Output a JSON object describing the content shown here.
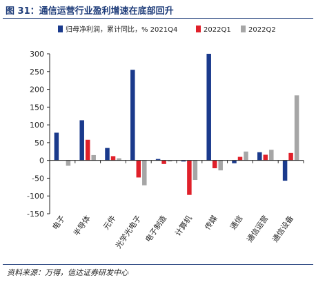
{
  "figure": {
    "title": "图 31：通信运营行业盈利增速在底部回升",
    "source": "资料来源：万得，信达证券研发中心"
  },
  "chart_data": {
    "type": "bar",
    "title": "图 31：通信运营行业盈利增速在底部回升",
    "xlabel": "",
    "ylabel": "",
    "ylim": [
      -150,
      300
    ],
    "yticks": [
      -150,
      -100,
      -50,
      0,
      50,
      100,
      150,
      200,
      250,
      300
    ],
    "grid": false,
    "legend_position": "top",
    "categories": [
      "电子",
      "半导体",
      "元件",
      "光学光电子",
      "电子制造",
      "计算机",
      "传媒",
      "通信",
      "通信运营",
      "通信设备"
    ],
    "series": [
      {
        "name": "归母净利润，累计同比，% 2021Q4",
        "color": "#1a3a8c",
        "values": [
          78,
          113,
          35,
          255,
          4,
          -3,
          300,
          -8,
          23,
          -57
        ]
      },
      {
        "name": "2022Q1",
        "color": "#e0202a",
        "values": [
          0,
          58,
          12,
          -48,
          -10,
          -97,
          -22,
          10,
          16,
          21
        ]
      },
      {
        "name": "2022Q2",
        "color": "#a6a6a6",
        "values": [
          -15,
          15,
          6,
          -70,
          -3,
          -55,
          -28,
          25,
          30,
          183
        ]
      }
    ]
  }
}
